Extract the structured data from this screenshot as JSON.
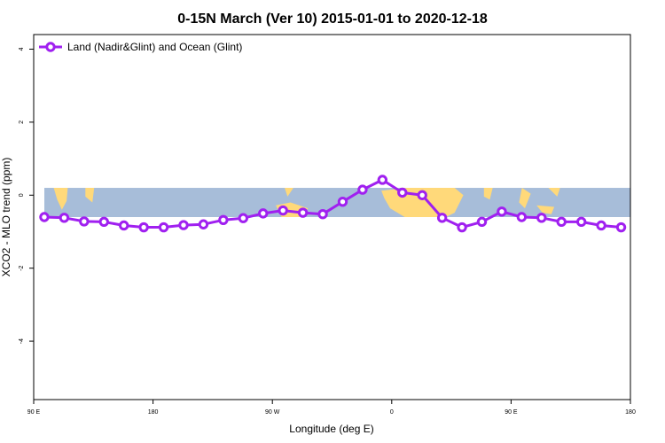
{
  "chart_data": {
    "type": "line",
    "title": "0-15N March (Ver 10)   2015-01-01 to 2020-12-18",
    "xlabel": "Longitude (deg E)",
    "ylabel": "XCO2 - MLO trend (ppm)",
    "x_ticks": [
      {
        "value": 90,
        "label": "90 E"
      },
      {
        "value": 180,
        "label": "180"
      },
      {
        "value": 270,
        "label": "90 W"
      },
      {
        "value": 360,
        "label": "0"
      },
      {
        "value": 450,
        "label": "90 E"
      },
      {
        "value": 540,
        "label": "180"
      }
    ],
    "y_ticks": [
      4,
      2,
      0,
      -2,
      -4
    ],
    "xlim": [
      90,
      540
    ],
    "ylim": [
      -5.6,
      4.4
    ],
    "grid": false,
    "legend_position": "top-left",
    "colors": {
      "series": "#a020f0",
      "ocean_band": "#a7bdd9",
      "land_band": "#ffd97a",
      "marker_fill": "#ffffff"
    },
    "band": {
      "y_top": 0.2,
      "y_bottom": -0.6
    },
    "series": [
      {
        "name": "Land (Nadir&Glint) and Ocean (Glint)",
        "x": [
          98,
          113,
          128,
          143,
          158,
          173,
          188,
          203,
          218,
          233,
          248,
          263,
          278,
          293,
          308,
          323,
          338,
          353,
          368,
          383,
          398,
          413,
          428,
          443,
          458,
          473,
          488,
          503,
          518,
          533
        ],
        "values": [
          -0.6,
          -0.62,
          -0.72,
          -0.73,
          -0.83,
          -0.88,
          -0.88,
          -0.82,
          -0.8,
          -0.68,
          -0.63,
          -0.5,
          -0.42,
          -0.48,
          -0.52,
          -0.18,
          0.15,
          0.42,
          0.07,
          0.0,
          -0.62,
          -0.88,
          -0.73,
          -0.45,
          -0.6,
          -0.62,
          -0.73,
          -0.73,
          -0.83,
          -0.88
        ]
      }
    ]
  }
}
